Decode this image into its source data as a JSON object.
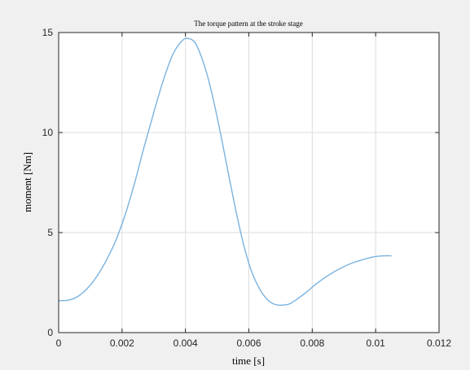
{
  "chart_data": {
    "type": "line",
    "title": "The torque pattern at the stroke stage",
    "xlabel": "time [s]",
    "ylabel": "moment  [Nm]",
    "xlim": [
      0,
      0.012
    ],
    "ylim": [
      0,
      15
    ],
    "xticks": [
      "0",
      "0.002",
      "0.004",
      "0.006",
      "0.008",
      "0.01",
      "0.012"
    ],
    "yticks": [
      "0",
      "5",
      "10",
      "15"
    ],
    "grid": true,
    "series": [
      {
        "color": "#7ab3df",
        "x": [
          0,
          0.0003,
          0.0006,
          0.0009,
          0.0012,
          0.0015,
          0.0018,
          0.0021,
          0.0024,
          0.0027,
          0.003,
          0.0033,
          0.0036,
          0.0039,
          0.0041,
          0.0043,
          0.0045,
          0.0047,
          0.0049,
          0.0051,
          0.0053,
          0.0055,
          0.0057,
          0.0059,
          0.0061,
          0.0063,
          0.0065,
          0.0067,
          0.0069,
          0.0071,
          0.0072,
          0.0073,
          0.0075,
          0.0078,
          0.0081,
          0.0084,
          0.0087,
          0.009,
          0.0093,
          0.0096,
          0.0099,
          0.0101,
          0.0103,
          0.0105
        ],
        "y": [
          1.6,
          1.62,
          1.8,
          2.2,
          2.8,
          3.6,
          4.6,
          5.9,
          7.5,
          9.3,
          11.0,
          12.6,
          13.9,
          14.6,
          14.7,
          14.5,
          13.8,
          12.8,
          11.5,
          10.0,
          8.4,
          6.8,
          5.3,
          4.0,
          3.0,
          2.3,
          1.8,
          1.5,
          1.38,
          1.38,
          1.4,
          1.45,
          1.65,
          2.0,
          2.4,
          2.75,
          3.05,
          3.3,
          3.5,
          3.65,
          3.78,
          3.82,
          3.84,
          3.84
        ]
      }
    ]
  }
}
